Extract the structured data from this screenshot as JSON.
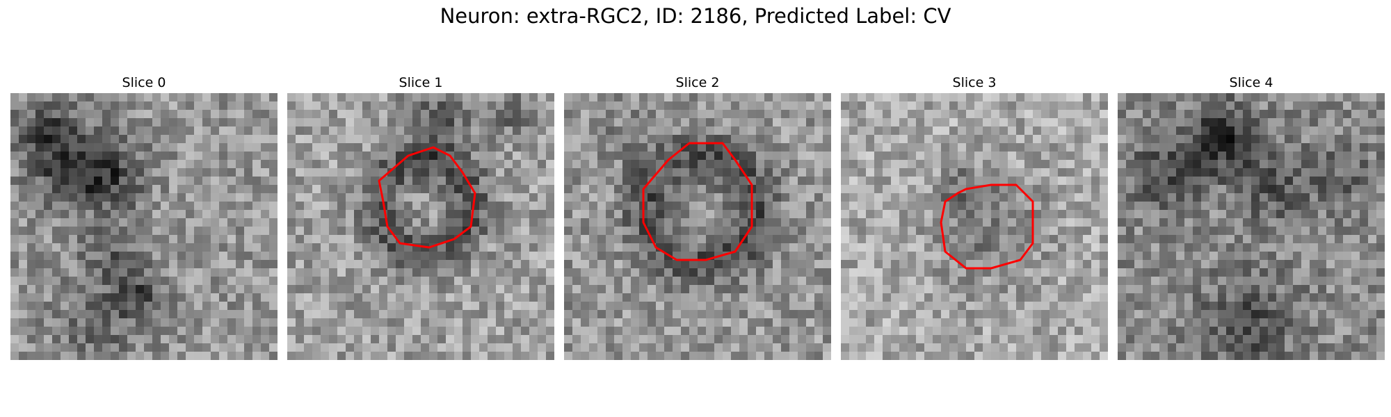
{
  "figure": {
    "title": "Neuron: extra-RGC2, ID: 2186, Predicted Label: CV"
  },
  "panels": [
    {
      "title": "Slice 0",
      "has_contour": false
    },
    {
      "title": "Slice 1",
      "has_contour": true
    },
    {
      "title": "Slice 2",
      "has_contour": true
    },
    {
      "title": "Slice 3",
      "has_contour": true
    },
    {
      "title": "Slice 4",
      "has_contour": false
    }
  ],
  "colors": {
    "contour": "#ff0000",
    "colormap": "grayscale"
  }
}
